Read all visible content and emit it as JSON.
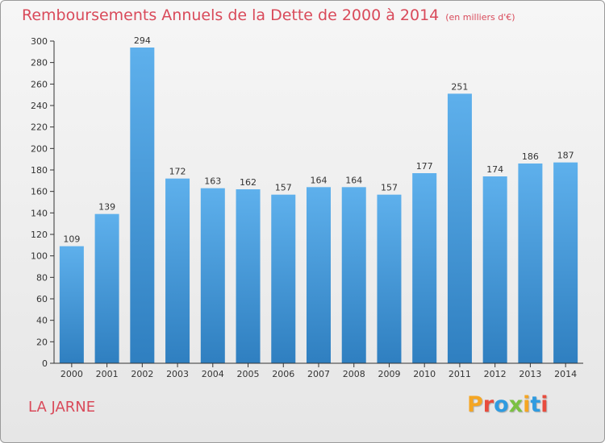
{
  "header": {
    "title": "Remboursements Annuels de la Dette de 2000 à 2014",
    "unit": "(en milliers d'€)"
  },
  "footer": {
    "commune": "LA JARNE",
    "logo_text": "Proxiti",
    "logo_colors": [
      "#f5a623",
      "#e84c3d",
      "#2f9be0",
      "#7bc142",
      "#f5a623",
      "#2f9be0",
      "#e84c3d"
    ]
  },
  "colors": {
    "title": "#d94a5a",
    "bar_top": "#5eb0ec",
    "bar_bottom": "#2f7fc0",
    "axis": "#333333",
    "grid": "#cfcfcf"
  },
  "chart_data": {
    "type": "bar",
    "title": "Remboursements Annuels de la Dette de 2000 à 2014",
    "subtitle": "(en milliers d'€)",
    "xlabel": "",
    "ylabel": "",
    "ylim": [
      0,
      300
    ],
    "ytick_step": 20,
    "grid": false,
    "categories": [
      "2000",
      "2001",
      "2002",
      "2003",
      "2004",
      "2005",
      "2006",
      "2007",
      "2008",
      "2009",
      "2010",
      "2011",
      "2012",
      "2013",
      "2014"
    ],
    "values": [
      109,
      139,
      294,
      172,
      163,
      162,
      157,
      164,
      164,
      157,
      177,
      251,
      174,
      186,
      187
    ]
  }
}
